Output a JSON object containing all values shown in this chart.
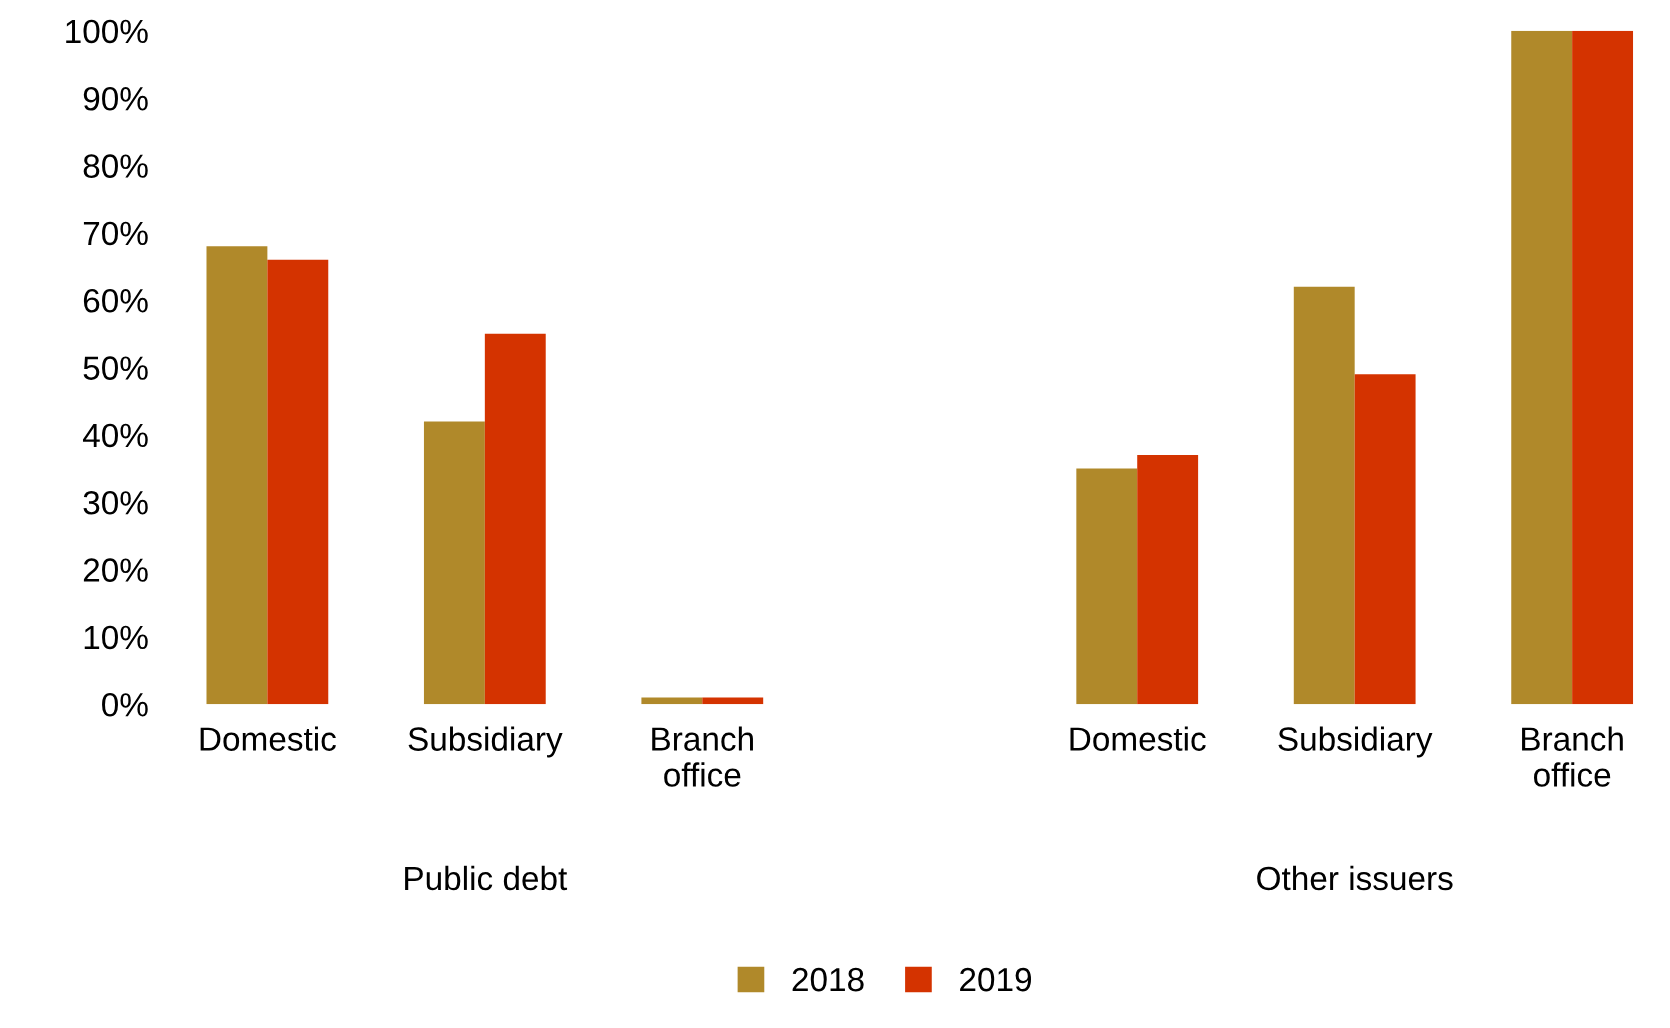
{
  "chart_data": {
    "type": "bar",
    "categories": [
      "Domestic",
      "Subsidiary",
      "Branch office",
      null,
      "Domestic",
      "Subsidiary",
      "Branch office"
    ],
    "series": [
      {
        "name": "2018",
        "color": "#b0892a",
        "values": [
          68,
          42,
          1,
          null,
          35,
          62,
          100
        ]
      },
      {
        "name": "2019",
        "color": "#d43300",
        "values": [
          66,
          55,
          1,
          null,
          37,
          49,
          100
        ]
      }
    ],
    "ylim": [
      0,
      100
    ],
    "yticks": [
      {
        "value": 0,
        "label": "0%"
      },
      {
        "value": 10,
        "label": "10%"
      },
      {
        "value": 20,
        "label": "20%"
      },
      {
        "value": 30,
        "label": "30%"
      },
      {
        "value": 40,
        "label": "40%"
      },
      {
        "value": 50,
        "label": "50%"
      },
      {
        "value": 60,
        "label": "60%"
      },
      {
        "value": 70,
        "label": "70%"
      },
      {
        "value": 80,
        "label": "80%"
      },
      {
        "value": 90,
        "label": "90%"
      },
      {
        "value": 100,
        "label": "100%"
      }
    ],
    "annotations": [
      "Public debt",
      "Other issuers"
    ],
    "legend": "bottom",
    "grid": false
  }
}
